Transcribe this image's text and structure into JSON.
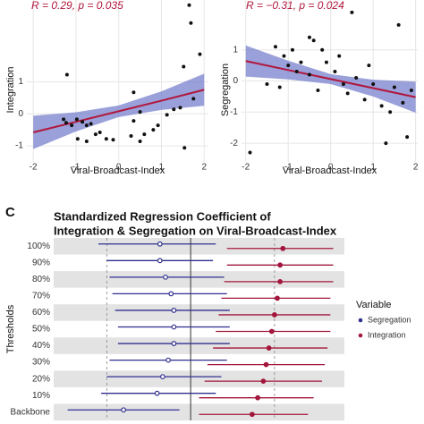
{
  "chart_data": [
    {
      "type": "scatter",
      "annotation": "R = 0.29, p = 0.035",
      "xlabel": "Viral-Broadcast-Index",
      "ylabel": "Integration",
      "color": "#111111",
      "xlim": [
        -2.15,
        2.1
      ],
      "ylim": [
        -1.5,
        3.55
      ],
      "xticks": [
        -2,
        -1,
        0,
        1,
        2
      ],
      "yticks": [
        -1,
        0,
        1
      ],
      "grid": true,
      "x": [
        1.65,
        1.69,
        1.9,
        1.52,
        -1.21,
        0.35,
        -1.29,
        -1.23,
        -1.1,
        -0.98,
        -0.85,
        -0.75,
        -0.65,
        -0.54,
        -0.44,
        -0.29,
        -0.13,
        -0.96,
        -0.75,
        0.29,
        0.5,
        0.6,
        0.81,
        0.92,
        1.13,
        1.29,
        1.44,
        1.75,
        1.54,
        0.35,
        0.5
      ],
      "y": [
        3.39,
        2.83,
        1.86,
        1.47,
        1.22,
        0.67,
        -0.17,
        -0.28,
        -0.36,
        -0.17,
        -0.25,
        -0.36,
        -0.31,
        -0.64,
        -0.58,
        -0.78,
        -0.81,
        -0.78,
        -0.86,
        -0.69,
        -0.86,
        -0.64,
        -0.5,
        -0.36,
        -0.03,
        0.14,
        0.19,
        0.47,
        -1.06,
        -0.22,
        0.06
      ],
      "fit": {
        "color": "#b0173c",
        "band_color": "#7880cc",
        "x": [
          -2,
          -1,
          0,
          1,
          2
        ],
        "y": [
          -0.58,
          -0.25,
          0.08,
          0.41,
          0.75
        ],
        "lower": [
          -1.1,
          -0.55,
          -0.1,
          0.12,
          0.25
        ],
        "upper": [
          -0.06,
          0.05,
          0.26,
          0.7,
          1.25
        ]
      }
    },
    {
      "type": "scatter",
      "annotation": "R = −0.31, p = 0.024",
      "xlabel": "Viral-Broadcast-Index",
      "ylabel": "Segregation",
      "color": "#111111",
      "xlim": [
        -2.1,
        2.05
      ],
      "ylim": [
        -2.6,
        2.6
      ],
      "xticks": [
        -2,
        -1,
        0,
        1,
        2
      ],
      "yticks": [
        -2,
        -1,
        0,
        1
      ],
      "grid": true,
      "x": [
        -0.5,
        -0.4,
        0.5,
        1.6,
        -1.3,
        -0.9,
        -0.2,
        0.2,
        -1.0,
        -0.8,
        -0.5,
        0.1,
        0.6,
        1.0,
        1.5,
        1.9,
        -1.5,
        -1.2,
        -0.3,
        0.4,
        0.8,
        1.2,
        1.4,
        -0.7,
        0.9,
        -1.9,
        1.8,
        1.3,
        0.3,
        -1.1,
        1.7,
        -0.1
      ],
      "y": [
        1.4,
        1.3,
        2.2,
        1.8,
        1.1,
        1.0,
        1.0,
        0.8,
        0.5,
        0.3,
        0.2,
        0.3,
        0.1,
        -0.1,
        -0.2,
        -0.3,
        -0.1,
        -0.2,
        -0.3,
        -0.4,
        -0.6,
        -0.8,
        -1.0,
        0.6,
        0.5,
        -2.3,
        -1.8,
        -2.0,
        -0.1,
        0.8,
        -0.7,
        0.6
      ],
      "fit": {
        "color": "#b0173c",
        "band_color": "#7880cc",
        "x": [
          -2,
          -1,
          0,
          1,
          2
        ],
        "y": [
          0.64,
          0.35,
          0.06,
          -0.23,
          -0.52
        ],
        "lower": [
          0.14,
          0.05,
          -0.1,
          -0.5,
          -1.02
        ],
        "upper": [
          1.14,
          0.65,
          0.22,
          0.04,
          -0.02
        ]
      }
    },
    {
      "type": "forest",
      "panel_label": "C",
      "title": [
        "Standardized Regression Coefficient of",
        "Integration & Segregation on Viral-Broadcast-Index"
      ],
      "ylabel": "Thresholds",
      "legend_title": "Variable",
      "xlim": [
        -0.49,
        0.55
      ],
      "reference_lines": [
        -0.3,
        0,
        0.3
      ],
      "reference_styles": [
        "dashed",
        "solid",
        "dashed"
      ],
      "categories": [
        "100%",
        "90%",
        "80%",
        "70%",
        "60%",
        "50%",
        "40%",
        "30%",
        "20%",
        "10%",
        "Backbone"
      ],
      "series": [
        {
          "name": "Segregation",
          "color": "#2f2f8f",
          "marker": "open",
          "values": [
            -0.11,
            -0.11,
            -0.09,
            -0.07,
            -0.06,
            -0.06,
            -0.06,
            -0.08,
            -0.1,
            -0.12,
            -0.24
          ],
          "lower": [
            -0.33,
            -0.3,
            -0.29,
            -0.28,
            -0.27,
            -0.26,
            -0.26,
            -0.29,
            -0.3,
            -0.32,
            -0.44
          ],
          "upper": [
            0.09,
            0.08,
            0.12,
            0.13,
            0.14,
            0.14,
            0.14,
            0.13,
            0.11,
            0.09,
            -0.04
          ]
        },
        {
          "name": "Integration",
          "color": "#a3173c",
          "marker": "filled",
          "values": [
            0.33,
            0.32,
            0.32,
            0.31,
            0.3,
            0.29,
            0.28,
            0.27,
            0.26,
            0.24,
            0.22
          ],
          "lower": [
            0.13,
            0.13,
            0.12,
            0.11,
            0.1,
            0.09,
            0.08,
            0.06,
            0.05,
            0.03,
            0.03
          ],
          "upper": [
            0.51,
            0.51,
            0.51,
            0.5,
            0.5,
            0.5,
            0.49,
            0.48,
            0.47,
            0.44,
            0.42
          ]
        }
      ]
    }
  ]
}
